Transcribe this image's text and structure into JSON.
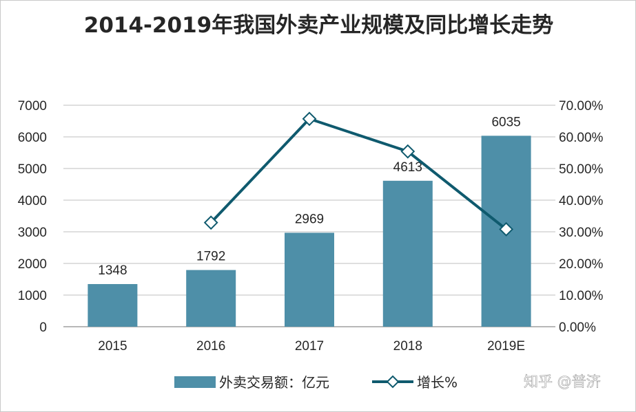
{
  "chart_data": {
    "type": "bar",
    "title": "2014-2019年我国外卖产业规模及同比增长走势",
    "categories": [
      "2015",
      "2016",
      "2017",
      "2018",
      "2019E"
    ],
    "series": [
      {
        "name": "外卖交易额：亿元",
        "type": "bar",
        "axis": "left",
        "values": [
          1348,
          1792,
          2969,
          4613,
          6035
        ],
        "color": "#4e8fa8"
      },
      {
        "name": "增长%",
        "type": "line",
        "axis": "right",
        "values": [
          null,
          32.9,
          65.7,
          55.4,
          30.8
        ],
        "color": "#0f5a6e"
      }
    ],
    "ylim_left": [
      0,
      7000
    ],
    "ylim_right": [
      0,
      70
    ],
    "left_ticks": [
      "0",
      "1000",
      "2000",
      "3000",
      "4000",
      "5000",
      "6000",
      "7000"
    ],
    "right_ticks": [
      "0.00%",
      "10.00%",
      "20.00%",
      "30.00%",
      "40.00%",
      "50.00%",
      "60.00%",
      "70.00%"
    ],
    "grid": true,
    "legend_position": "bottom"
  },
  "watermark": "知乎 @普济"
}
